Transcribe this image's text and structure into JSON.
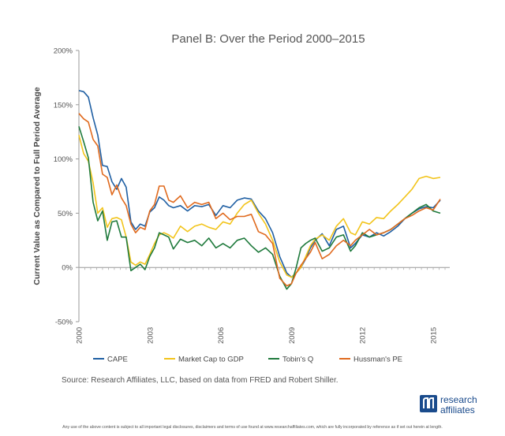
{
  "chart_data": {
    "type": "line",
    "title": "Panel B: Over the Period 2000–2015",
    "ylabel": "Current Value as Compared  to Full Period Average",
    "xlabel": "",
    "ylim": [
      -50,
      200
    ],
    "xlim": [
      2000,
      2015.7
    ],
    "yticks": [
      -50,
      0,
      50,
      100,
      150,
      200
    ],
    "ytick_labels": [
      "-50%",
      "0%",
      "50%",
      "100%",
      "150%",
      "200%"
    ],
    "xticks": [
      2000,
      2003,
      2006,
      2009,
      2012,
      2015
    ],
    "xtick_labels": [
      "2000",
      "2003",
      "2006",
      "2009",
      "2012",
      "2015"
    ],
    "grid": false,
    "legend_position": "bottom",
    "colors": {
      "CAPE": "#1f5fa3",
      "Market Cap to GDP": "#f2c41b",
      "Tobin's Q": "#1f7a3c",
      "Hussman's PE": "#e06a1e"
    },
    "series": [
      {
        "name": "CAPE",
        "x": [
          2000.0,
          2000.2,
          2000.4,
          2000.6,
          2000.8,
          2001.0,
          2001.2,
          2001.4,
          2001.6,
          2001.8,
          2002.0,
          2002.2,
          2002.4,
          2002.6,
          2002.8,
          2003.0,
          2003.2,
          2003.4,
          2003.6,
          2003.8,
          2004.0,
          2004.3,
          2004.6,
          2004.9,
          2005.2,
          2005.5,
          2005.8,
          2006.1,
          2006.4,
          2006.7,
          2007.0,
          2007.3,
          2007.6,
          2007.9,
          2008.2,
          2008.5,
          2008.8,
          2009.0,
          2009.2,
          2009.4,
          2009.6,
          2009.8,
          2010.0,
          2010.3,
          2010.6,
          2010.9,
          2011.2,
          2011.5,
          2011.7,
          2012.0,
          2012.3,
          2012.6,
          2012.9,
          2013.2,
          2013.5,
          2013.8,
          2014.1,
          2014.4,
          2014.7,
          2015.0,
          2015.3
        ],
        "values": [
          163,
          162,
          157,
          138,
          122,
          94,
          93,
          79,
          72,
          82,
          74,
          42,
          35,
          40,
          38,
          51,
          55,
          65,
          62,
          57,
          55,
          57,
          52,
          57,
          56,
          58,
          48,
          57,
          55,
          62,
          64,
          63,
          52,
          45,
          32,
          10,
          -5,
          -9,
          -5,
          0,
          8,
          18,
          25,
          31,
          20,
          35,
          38,
          18,
          22,
          30,
          28,
          32,
          29,
          33,
          38,
          45,
          50,
          54,
          56,
          55,
          62
        ]
      },
      {
        "name": "Market Cap to GDP",
        "x": [
          2000.0,
          2000.2,
          2000.4,
          2000.6,
          2000.8,
          2001.0,
          2001.2,
          2001.4,
          2001.6,
          2001.8,
          2002.0,
          2002.2,
          2002.4,
          2002.6,
          2002.8,
          2003.0,
          2003.2,
          2003.4,
          2003.6,
          2003.8,
          2004.0,
          2004.3,
          2004.6,
          2004.9,
          2005.2,
          2005.5,
          2005.8,
          2006.1,
          2006.4,
          2006.7,
          2007.0,
          2007.3,
          2007.6,
          2007.9,
          2008.2,
          2008.5,
          2008.8,
          2009.0,
          2009.2,
          2009.4,
          2009.6,
          2009.8,
          2010.0,
          2010.3,
          2010.6,
          2010.9,
          2011.2,
          2011.5,
          2011.7,
          2012.0,
          2012.3,
          2012.6,
          2012.9,
          2013.2,
          2013.5,
          2013.8,
          2014.1,
          2014.4,
          2014.7,
          2015.0,
          2015.3
        ],
        "values": [
          122,
          105,
          98,
          78,
          50,
          55,
          37,
          45,
          46,
          44,
          28,
          5,
          2,
          5,
          3,
          12,
          22,
          30,
          32,
          30,
          27,
          38,
          33,
          38,
          40,
          37,
          35,
          42,
          40,
          50,
          58,
          62,
          50,
          40,
          25,
          5,
          -7,
          -9,
          -5,
          0,
          10,
          20,
          26,
          30,
          25,
          38,
          45,
          32,
          30,
          42,
          40,
          46,
          45,
          52,
          58,
          65,
          72,
          82,
          84,
          82,
          83
        ]
      },
      {
        "name": "Tobin's Q",
        "x": [
          2000.0,
          2000.2,
          2000.4,
          2000.6,
          2000.8,
          2001.0,
          2001.2,
          2001.4,
          2001.6,
          2001.8,
          2002.0,
          2002.2,
          2002.4,
          2002.6,
          2002.8,
          2003.0,
          2003.2,
          2003.4,
          2003.6,
          2003.8,
          2004.0,
          2004.3,
          2004.6,
          2004.9,
          2005.2,
          2005.5,
          2005.8,
          2006.1,
          2006.4,
          2006.7,
          2007.0,
          2007.3,
          2007.6,
          2007.9,
          2008.2,
          2008.5,
          2008.8,
          2009.0,
          2009.2,
          2009.4,
          2009.6,
          2009.8,
          2010.0,
          2010.3,
          2010.6,
          2010.9,
          2011.2,
          2011.5,
          2011.7,
          2012.0,
          2012.3,
          2012.6,
          2012.9,
          2013.2,
          2013.5,
          2013.8,
          2014.1,
          2014.4,
          2014.7,
          2015.0,
          2015.3
        ],
        "values": [
          130,
          116,
          101,
          60,
          43,
          52,
          25,
          42,
          43,
          28,
          28,
          -3,
          0,
          3,
          -2,
          10,
          18,
          32,
          30,
          28,
          17,
          26,
          23,
          25,
          20,
          27,
          18,
          22,
          18,
          25,
          27,
          20,
          14,
          18,
          12,
          -8,
          -20,
          -15,
          0,
          18,
          22,
          25,
          27,
          15,
          18,
          28,
          30,
          15,
          20,
          32,
          28,
          30,
          32,
          35,
          40,
          45,
          50,
          55,
          58,
          52,
          50
        ]
      },
      {
        "name": "Hussman's PE",
        "x": [
          2000.0,
          2000.2,
          2000.4,
          2000.6,
          2000.8,
          2001.0,
          2001.2,
          2001.4,
          2001.6,
          2001.8,
          2002.0,
          2002.2,
          2002.4,
          2002.6,
          2002.8,
          2003.0,
          2003.2,
          2003.4,
          2003.6,
          2003.8,
          2004.0,
          2004.3,
          2004.6,
          2004.9,
          2005.2,
          2005.5,
          2005.8,
          2006.1,
          2006.4,
          2006.7,
          2007.0,
          2007.3,
          2007.6,
          2007.9,
          2008.2,
          2008.5,
          2008.8,
          2009.0,
          2009.2,
          2009.4,
          2009.6,
          2009.8,
          2010.0,
          2010.3,
          2010.6,
          2010.9,
          2011.2,
          2011.5,
          2011.7,
          2012.0,
          2012.3,
          2012.6,
          2012.9,
          2013.2,
          2013.5,
          2013.8,
          2014.1,
          2014.4,
          2014.7,
          2015.0,
          2015.3
        ],
        "values": [
          142,
          137,
          134,
          118,
          112,
          86,
          83,
          67,
          76,
          64,
          57,
          40,
          32,
          37,
          35,
          52,
          58,
          75,
          75,
          62,
          60,
          66,
          55,
          60,
          58,
          60,
          45,
          50,
          44,
          47,
          47,
          49,
          33,
          30,
          22,
          -10,
          -17,
          -15,
          -5,
          2,
          8,
          14,
          23,
          8,
          12,
          20,
          25,
          20,
          25,
          30,
          35,
          30,
          32,
          35,
          40,
          45,
          48,
          52,
          55,
          53,
          63
        ]
      }
    ]
  },
  "source_note": "Source: Research Affiliates, LLC, based on data from FRED and Robert Shiller.",
  "disclaimer": "Any use of the above content is subject to all important legal disclosures, disclaimers and terms of use found at www.researchaffiliates.com, which are fully incorporated by reference as if set out herein at length.",
  "logo_text": [
    "research",
    "affiliates"
  ]
}
